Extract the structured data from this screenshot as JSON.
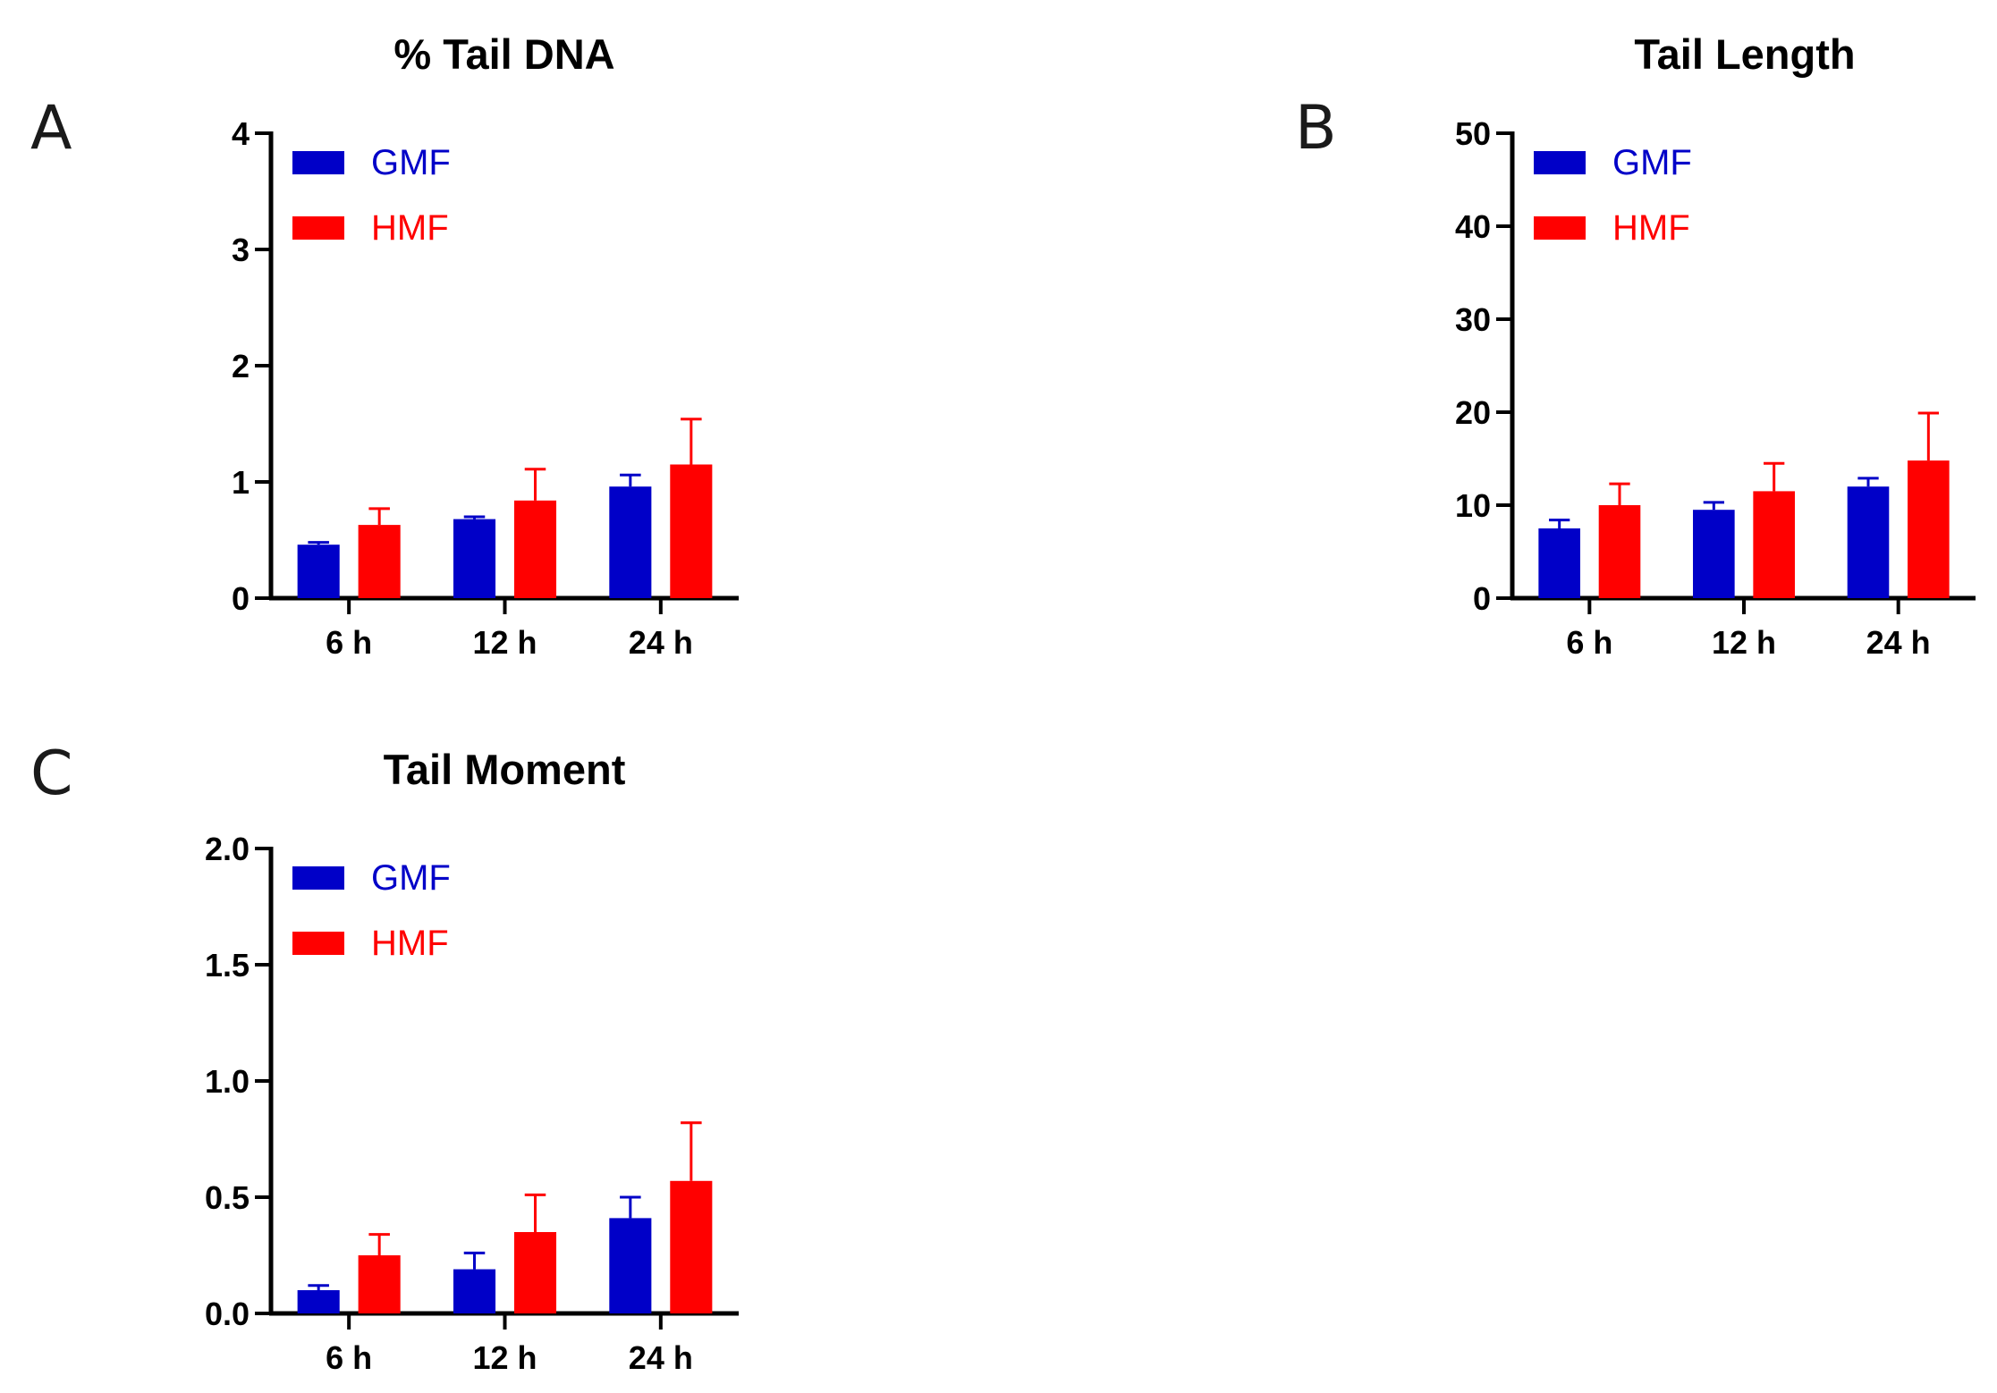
{
  "chart_data": [
    {
      "panel": "A",
      "type": "bar",
      "title": "% Tail DNA",
      "xlabel": "",
      "ylabel": "",
      "categories": [
        "6 h",
        "12 h",
        "24 h"
      ],
      "ylim": [
        0,
        4
      ],
      "yticks": [
        0,
        1,
        2,
        3,
        4
      ],
      "ytick_labels": [
        "0",
        "1",
        "2",
        "3",
        "4"
      ],
      "series": [
        {
          "name": "GMF",
          "color": "#0000c8",
          "values": [
            0.46,
            0.68,
            0.96
          ],
          "errors": [
            0.02,
            0.02,
            0.1
          ]
        },
        {
          "name": "HMF",
          "color": "#ff0000",
          "values": [
            0.63,
            0.84,
            1.15
          ],
          "errors": [
            0.14,
            0.27,
            0.39
          ]
        }
      ],
      "legend": "top-left"
    },
    {
      "panel": "B",
      "type": "bar",
      "title": "Tail Length",
      "xlabel": "",
      "ylabel": "",
      "categories": [
        "6 h",
        "12 h",
        "24 h"
      ],
      "ylim": [
        0,
        50
      ],
      "yticks": [
        0,
        10,
        20,
        30,
        40,
        50
      ],
      "ytick_labels": [
        "0",
        "10",
        "20",
        "30",
        "40",
        "50"
      ],
      "series": [
        {
          "name": "GMF",
          "color": "#0000c8",
          "values": [
            7.5,
            9.5,
            12.0
          ],
          "errors": [
            0.9,
            0.8,
            0.9
          ]
        },
        {
          "name": "HMF",
          "color": "#ff0000",
          "values": [
            10.0,
            11.5,
            14.8
          ],
          "errors": [
            2.3,
            3.0,
            5.1
          ]
        }
      ],
      "legend": "top-left"
    },
    {
      "panel": "C",
      "type": "bar",
      "title": "Tail Moment",
      "xlabel": "",
      "ylabel": "",
      "categories": [
        "6 h",
        "12 h",
        "24 h"
      ],
      "ylim": [
        0,
        2
      ],
      "yticks": [
        0,
        0.5,
        1,
        1.5,
        2
      ],
      "ytick_labels": [
        "0.0",
        "0.5",
        "1.0",
        "1.5",
        "2.0"
      ],
      "series": [
        {
          "name": "GMF",
          "color": "#0000c8",
          "values": [
            0.1,
            0.19,
            0.41
          ],
          "errors": [
            0.02,
            0.07,
            0.09
          ]
        },
        {
          "name": "HMF",
          "color": "#ff0000",
          "values": [
            0.25,
            0.35,
            0.57
          ],
          "errors": [
            0.09,
            0.16,
            0.25
          ]
        }
      ],
      "legend": "top-left"
    }
  ]
}
